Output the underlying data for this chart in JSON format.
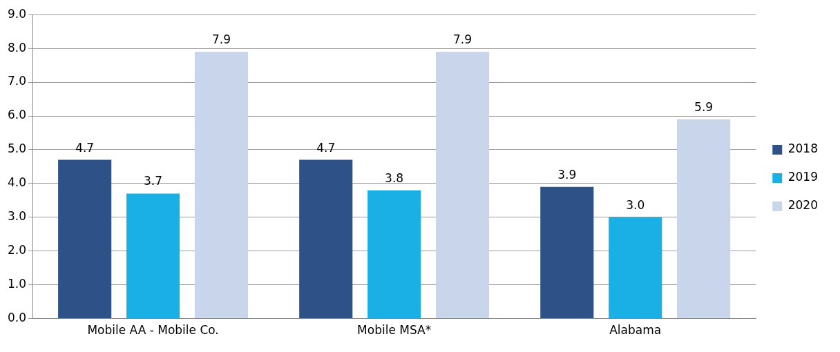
{
  "chart_data": {
    "type": "bar",
    "categories": [
      "Mobile AA - Mobile Co.",
      "Mobile MSA*",
      "Alabama"
    ],
    "series": [
      {
        "name": "2018",
        "color": "#2e5288",
        "values": [
          4.7,
          4.7,
          3.9
        ],
        "value_labels": [
          "4.7",
          "4.7",
          "3.9"
        ]
      },
      {
        "name": "2019",
        "color": "#1ab0e6",
        "values": [
          3.7,
          3.8,
          3.0
        ],
        "value_labels": [
          "3.7",
          "3.8",
          "3.0"
        ]
      },
      {
        "name": "2020",
        "color": "#c9d5ea",
        "values": [
          7.9,
          7.9,
          5.9
        ],
        "value_labels": [
          "7.9",
          "7.9",
          "5.9"
        ]
      }
    ],
    "ylim": [
      0,
      9
    ],
    "yticks": [
      {
        "value": 0,
        "label": "0.0"
      },
      {
        "value": 1,
        "label": "1.0"
      },
      {
        "value": 2,
        "label": "2.0"
      },
      {
        "value": 3,
        "label": "3.0"
      },
      {
        "value": 4,
        "label": "4.0"
      },
      {
        "value": 5,
        "label": "5.0"
      },
      {
        "value": 6,
        "label": "6.0"
      },
      {
        "value": 7,
        "label": "7.0"
      },
      {
        "value": 8,
        "label": "8.0"
      },
      {
        "value": 9,
        "label": "9.0"
      }
    ],
    "grid": "y",
    "legend": "right"
  }
}
